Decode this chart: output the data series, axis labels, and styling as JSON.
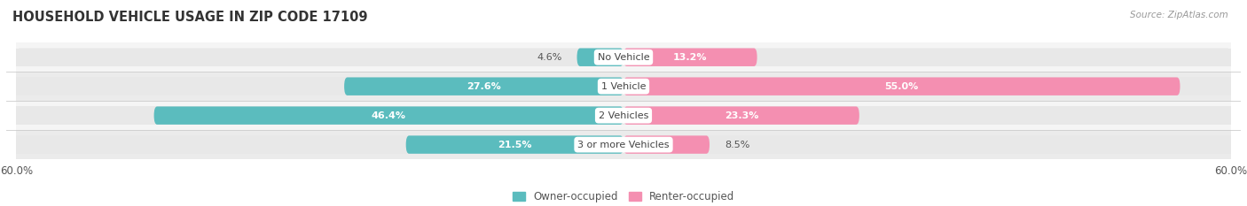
{
  "title": "HOUSEHOLD VEHICLE USAGE IN ZIP CODE 17109",
  "source": "Source: ZipAtlas.com",
  "categories": [
    "No Vehicle",
    "1 Vehicle",
    "2 Vehicles",
    "3 or more Vehicles"
  ],
  "owner_values": [
    4.6,
    27.6,
    46.4,
    21.5
  ],
  "renter_values": [
    13.2,
    55.0,
    23.3,
    8.5
  ],
  "owner_color": "#5bbcbe",
  "renter_color": "#f48fb1",
  "bar_bg_color": "#e8e8e8",
  "row_bg_even": "#f5f5f5",
  "row_bg_odd": "#ebebeb",
  "background_color": "#ffffff",
  "axis_limit": 60.0,
  "owner_label": "Owner-occupied",
  "renter_label": "Renter-occupied",
  "title_fontsize": 10.5,
  "label_fontsize": 8.0,
  "tick_fontsize": 8.5,
  "bar_height": 0.62,
  "label_color_inside": "#ffffff",
  "label_color_outside": "#555555",
  "category_font_color": "#444444",
  "category_fontsize": 8.0
}
